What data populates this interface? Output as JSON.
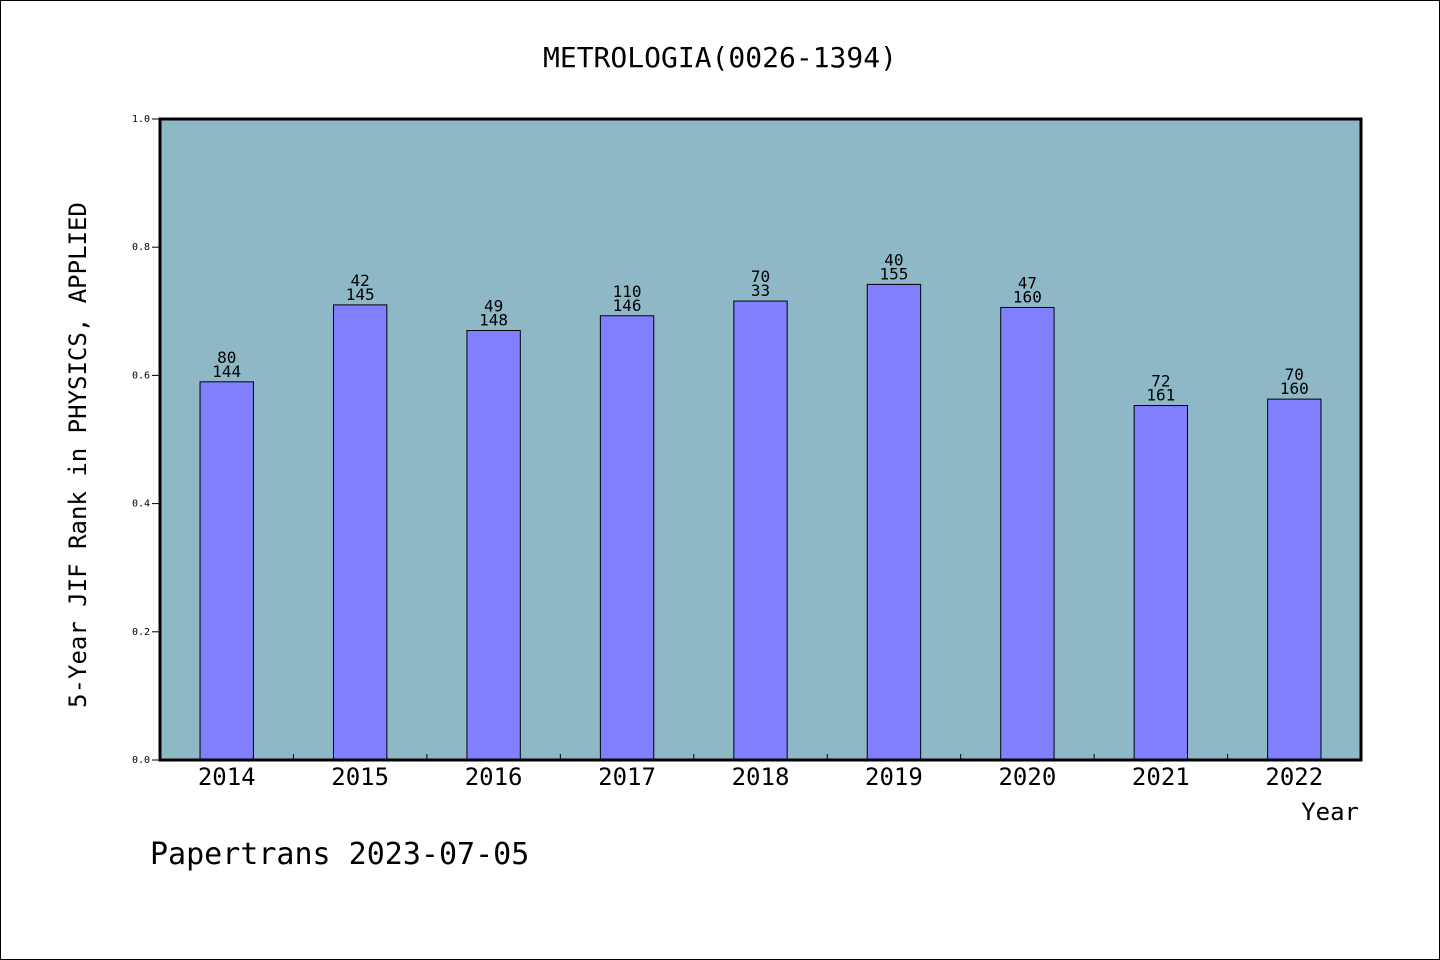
{
  "chart_data": {
    "type": "bar",
    "title": "METROLOGIA(0026-1394)",
    "xlabel": "Year",
    "ylabel": "5-Year JIF Rank in PHYSICS, APPLIED",
    "ylim": [
      0,
      1.0
    ],
    "yticks": [
      "0.0",
      "0.2",
      "0.4",
      "0.6",
      "0.8",
      "1.0"
    ],
    "grid": false,
    "categories": [
      "2014",
      "2015",
      "2016",
      "2017",
      "2018",
      "2019",
      "2020",
      "2021",
      "2022"
    ],
    "values": [
      0.59,
      0.71,
      0.67,
      0.693,
      0.716,
      0.742,
      0.706,
      0.553,
      0.563
    ],
    "labels_top": [
      "80",
      "42",
      "49",
      "110",
      "70",
      "40",
      "47",
      "72",
      "70"
    ],
    "labels_bottom": [
      "144",
      "145",
      "148",
      "146",
      "33",
      "155",
      "160",
      "161",
      "160"
    ],
    "plot_background": "#8fb8c7",
    "bar_color": "#8080ff"
  },
  "footer": "Papertrans 2023-07-05"
}
